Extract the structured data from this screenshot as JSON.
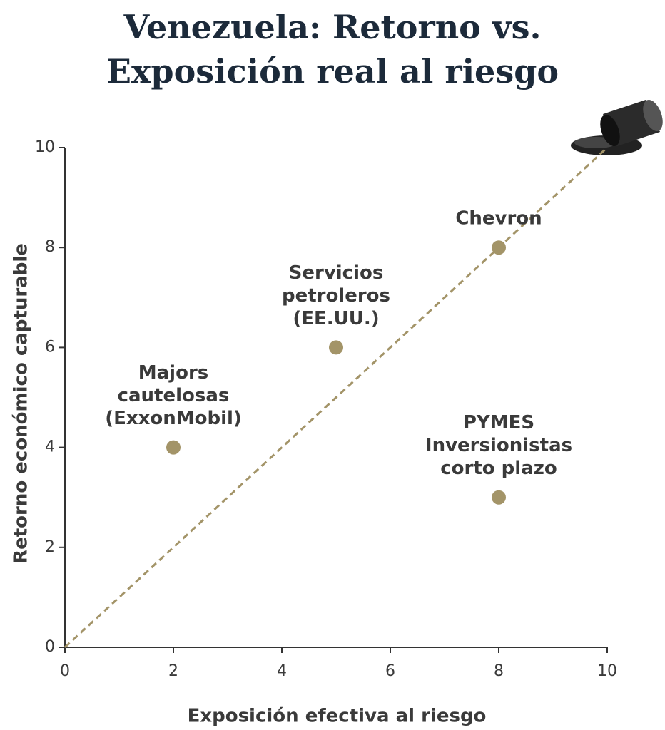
{
  "chart_data": {
    "type": "scatter",
    "title": [
      "Venezuela: Retorno vs.",
      "Exposición real al riesgo"
    ],
    "x_label": "Exposición efectiva al riesgo",
    "y_label": "Retorno económico capturable",
    "x": [
      2,
      5,
      8,
      8
    ],
    "values": [
      4,
      6,
      8,
      3
    ],
    "labels": [
      [
        "Majors",
        "cautelosas",
        "(ExxonMobil)"
      ],
      [
        "Servicios",
        "petroleros",
        "(EE.UU.)"
      ],
      [
        "Chevron"
      ],
      [
        "PYMES",
        "Inversionistas",
        "corto plazo"
      ]
    ],
    "color": "#a39468",
    "xlim": [
      0,
      10
    ],
    "ylim": [
      0,
      10
    ],
    "xticks": [
      0,
      2,
      4,
      6,
      8,
      10
    ],
    "yticks": [
      0,
      2,
      4,
      6,
      8,
      10
    ]
  }
}
